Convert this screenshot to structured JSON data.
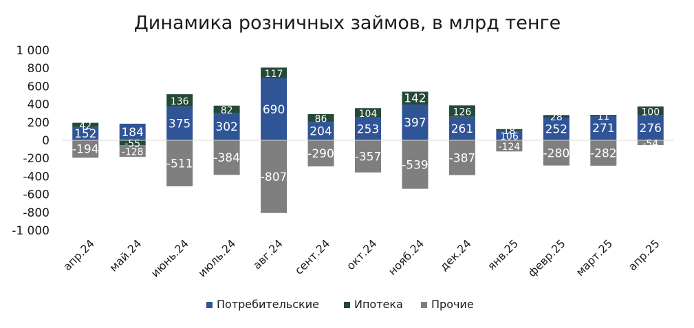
{
  "chart_data": {
    "type": "bar",
    "stacked": true,
    "title": "Динамика розничных займов, в млрд тенге",
    "categories": [
      "апр.24",
      "май.24",
      "июнь.24",
      "июль.24",
      "авг.24",
      "сент.24",
      "окт.24",
      "нояб.24",
      "дек.24",
      "янв.25",
      "февр.25",
      "март.25",
      "апр.25"
    ],
    "series": [
      {
        "name": "Потребительские",
        "color": "#2f5597",
        "values": [
          152,
          184,
          375,
          302,
          690,
          204,
          253,
          397,
          261,
          106,
          252,
          271,
          276
        ]
      },
      {
        "name": "Ипотека",
        "color": "#244a37",
        "values": [
          42,
          -55,
          136,
          82,
          117,
          86,
          104,
          142,
          126,
          18,
          28,
          11,
          100
        ]
      },
      {
        "name": "Прочие",
        "color": "#7f7f7f",
        "values": [
          -194,
          -128,
          -511,
          -384,
          -807,
          -290,
          -357,
          -539,
          -387,
          -124,
          -280,
          -282,
          -54
        ]
      }
    ],
    "ylim": [
      -1000,
      1000
    ],
    "yticks": [
      1000,
      800,
      600,
      400,
      200,
      0,
      -200,
      -400,
      -600,
      -800,
      -1000
    ],
    "ytick_labels": [
      "1 000",
      "800",
      "600",
      "400",
      "200",
      "0",
      "-200",
      "-400",
      "-600",
      "-800",
      "-1 000"
    ],
    "legend_position": "bottom",
    "grid": false
  }
}
